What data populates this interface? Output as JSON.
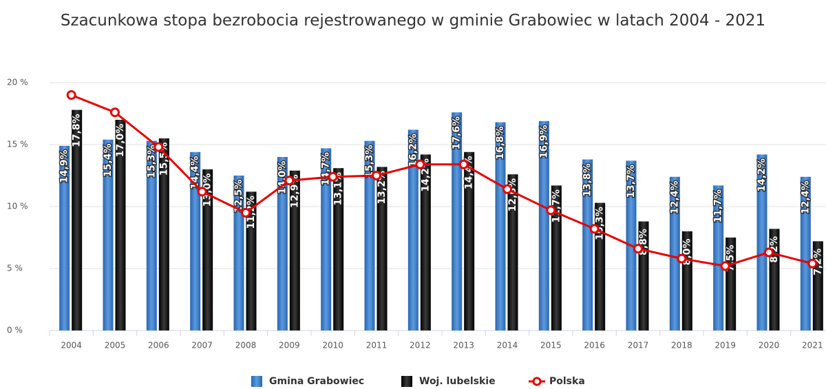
{
  "chart_data": {
    "type": "bar",
    "title": "Szacunkowa stopa bezrobocia rejestrowanego w gminie Grabowiec w latach 2004 - 2021",
    "categories": [
      "2004",
      "2005",
      "2006",
      "2007",
      "2008",
      "2009",
      "2010",
      "2011",
      "2012",
      "2013",
      "2014",
      "2015",
      "2016",
      "2017",
      "2018",
      "2019",
      "2020",
      "2021"
    ],
    "series": [
      {
        "name": "Gmina Grabowiec",
        "type": "bar",
        "color": "#3b7cc4",
        "values": [
          14.9,
          15.4,
          15.3,
          14.4,
          12.5,
          14.0,
          14.7,
          15.3,
          16.2,
          17.6,
          16.8,
          16.9,
          13.8,
          13.7,
          12.4,
          11.7,
          14.2,
          12.4
        ],
        "value_labels": [
          "14,9%",
          "15,4%",
          "15,3%",
          "14,4%",
          "12,5%",
          "14,0%",
          "14,7%",
          "15,3%",
          "16,2%",
          "17,6%",
          "16,8%",
          "16,9%",
          "13,8%",
          "13,7%",
          "12,4%",
          "11,7%",
          "14,2%",
          "12,4%"
        ]
      },
      {
        "name": "Woj. lubelskie",
        "type": "bar",
        "color": "#111111",
        "values": [
          17.8,
          17.0,
          15.5,
          13.0,
          11.2,
          12.9,
          13.1,
          13.2,
          14.2,
          14.4,
          12.6,
          11.7,
          10.3,
          8.8,
          8.0,
          7.5,
          8.2,
          7.2
        ],
        "value_labels": [
          "17,8%",
          "17,0%",
          "15,5%",
          "13,0%",
          "11,2%",
          "12,9%",
          "13,1%",
          "13,2%",
          "14,2%",
          "14,4%",
          "12,6%",
          "11,7%",
          "10,3%",
          "8,8%",
          "8,0%",
          "7,5%",
          "8,2%",
          "7,2%"
        ]
      },
      {
        "name": "Polska",
        "type": "line",
        "color": "#e60000",
        "values": [
          19.0,
          17.6,
          14.8,
          11.2,
          9.5,
          12.1,
          12.4,
          12.5,
          13.4,
          13.4,
          11.4,
          9.7,
          8.2,
          6.6,
          5.8,
          5.2,
          6.3,
          5.4
        ]
      }
    ],
    "ylim": [
      0,
      20
    ],
    "yticks": [
      {
        "value": 0,
        "label": "0 %"
      },
      {
        "value": 5,
        "label": "5 %"
      },
      {
        "value": 10,
        "label": "10 %"
      },
      {
        "value": 15,
        "label": "15 %"
      },
      {
        "value": 20,
        "label": "20 %"
      }
    ],
    "grid": true,
    "legend": "bottom"
  }
}
